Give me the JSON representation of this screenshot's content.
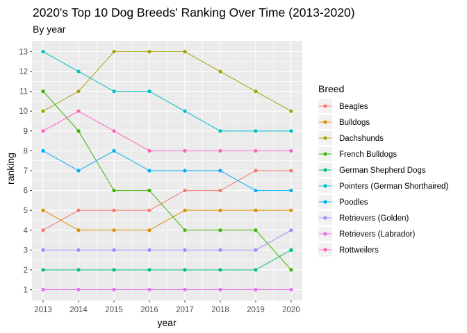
{
  "chart_data": {
    "type": "line",
    "title": "2020's Top 10 Dog Breeds' Ranking Over Time (2013-2020)",
    "subtitle": "By year",
    "xlabel": "year",
    "ylabel": "ranking",
    "x": [
      2013,
      2014,
      2015,
      2016,
      2017,
      2018,
      2019,
      2020
    ],
    "xlim": [
      2013,
      2020
    ],
    "ylim": [
      1,
      13
    ],
    "yticks": [
      1,
      2,
      3,
      4,
      5,
      6,
      7,
      8,
      9,
      10,
      11,
      12,
      13
    ],
    "grid": true,
    "legend": {
      "title": "Breed",
      "position": "right"
    },
    "series": [
      {
        "name": "Beagles",
        "color": "#F8766D",
        "values": [
          4,
          5,
          5,
          5,
          6,
          6,
          7,
          7
        ]
      },
      {
        "name": "Bulldogs",
        "color": "#D89000",
        "values": [
          5,
          4,
          4,
          4,
          5,
          5,
          5,
          5
        ]
      },
      {
        "name": "Dachshunds",
        "color": "#A3A500",
        "values": [
          10,
          11,
          13,
          13,
          13,
          12,
          11,
          10
        ]
      },
      {
        "name": "French Bulldogs",
        "color": "#39B600",
        "values": [
          11,
          9,
          6,
          6,
          4,
          4,
          4,
          2
        ]
      },
      {
        "name": "German Shepherd Dogs",
        "color": "#00BF7D",
        "values": [
          2,
          2,
          2,
          2,
          2,
          2,
          2,
          3
        ]
      },
      {
        "name": "Pointers (German Shorthaired)",
        "color": "#00BFC4",
        "values": [
          13,
          12,
          11,
          11,
          10,
          9,
          9,
          9
        ]
      },
      {
        "name": "Poodles",
        "color": "#00B0F6",
        "values": [
          8,
          7,
          8,
          7,
          7,
          7,
          6,
          6
        ]
      },
      {
        "name": "Retrievers (Golden)",
        "color": "#9590FF",
        "values": [
          3,
          3,
          3,
          3,
          3,
          3,
          3,
          4
        ]
      },
      {
        "name": "Retrievers (Labrador)",
        "color": "#E76BF3",
        "values": [
          1,
          1,
          1,
          1,
          1,
          1,
          1,
          1
        ]
      },
      {
        "name": "Rottweilers",
        "color": "#FF62BC",
        "values": [
          9,
          10,
          9,
          8,
          8,
          8,
          8,
          8
        ]
      }
    ],
    "colors": {
      "panel_background": "#EBEBEB",
      "grid_major": "#FFFFFF"
    }
  }
}
